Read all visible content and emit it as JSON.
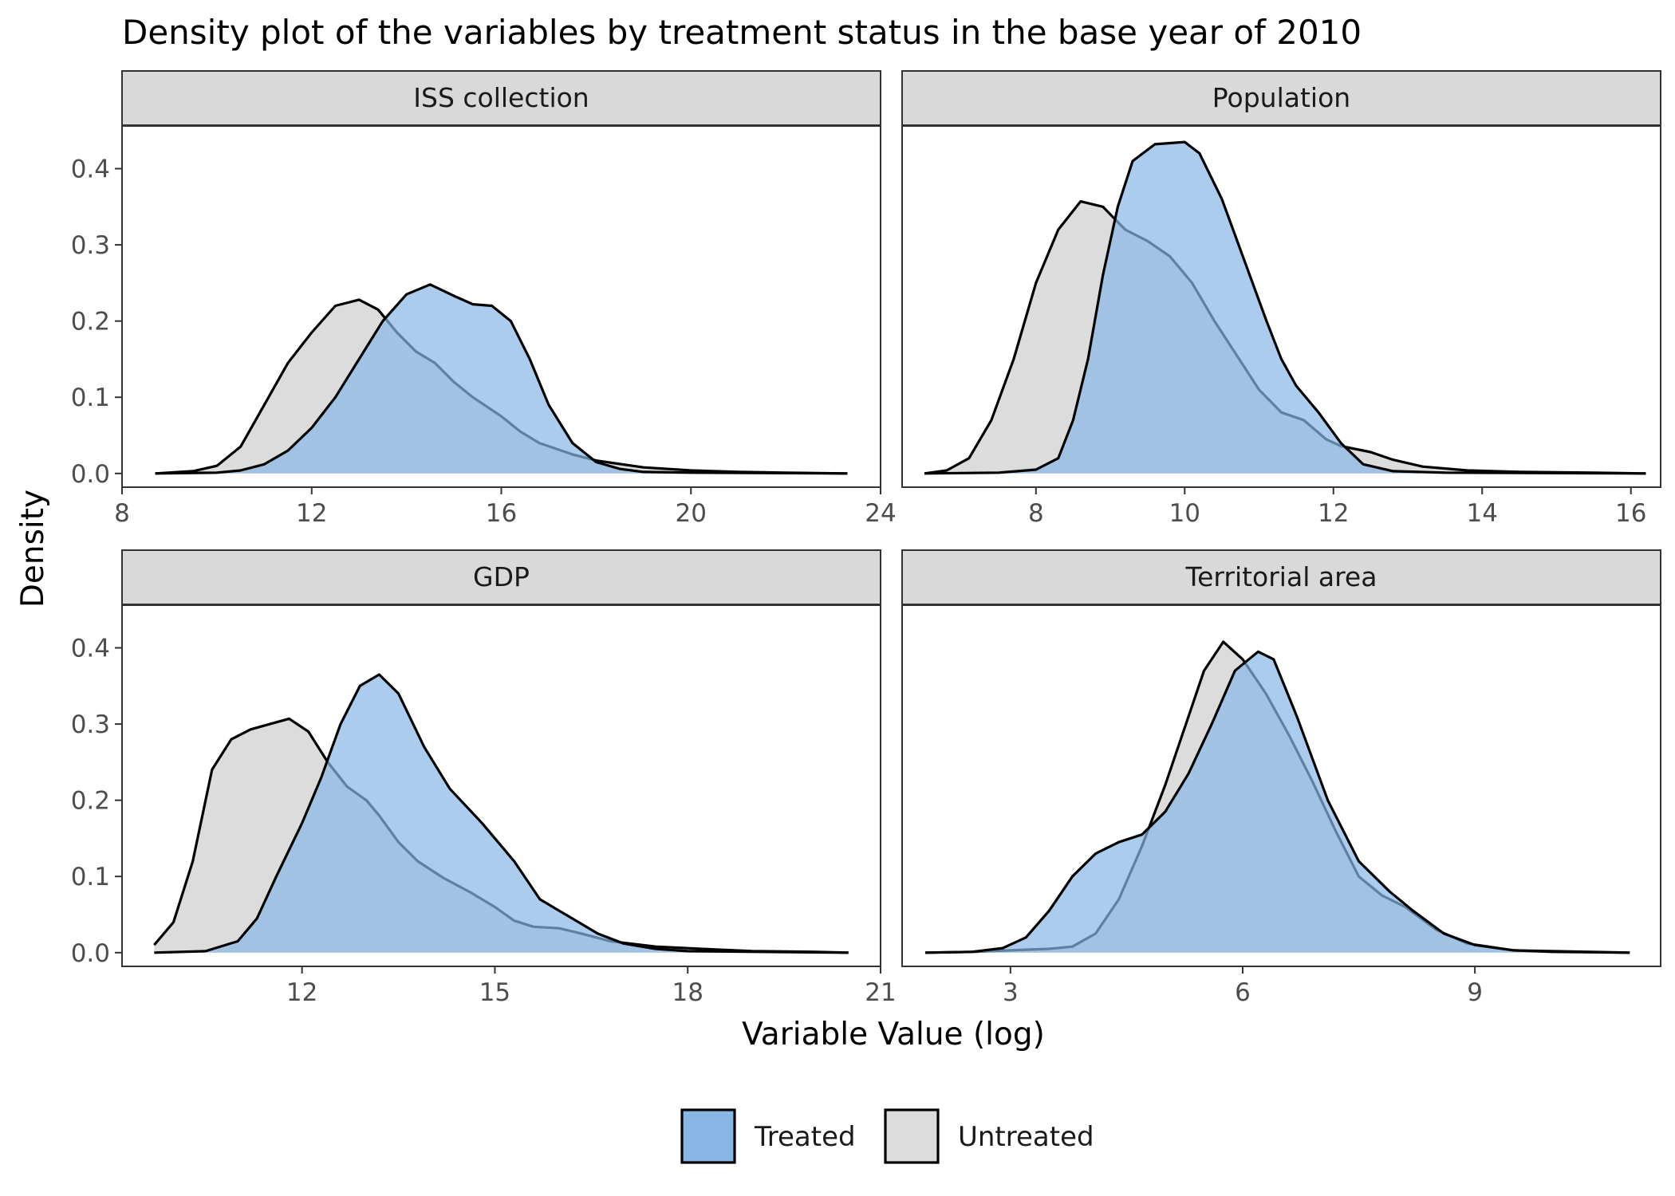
{
  "chart_data": {
    "type": "area",
    "subtype": "density-facets",
    "title": "Density plot of the variables by treatment status in the base year of 2010",
    "xlabel": "Variable Value (log)",
    "ylabel": "Density",
    "grid": false,
    "legend_position": "bottom",
    "series_style": {
      "Treated": {
        "fill": "#87b6e5",
        "stroke": "#000000"
      },
      "Untreated": {
        "fill": "#dcdcdc",
        "stroke": "#000000"
      }
    },
    "legend": [
      {
        "name": "Treated",
        "color": "#87b6e5"
      },
      {
        "name": "Untreated",
        "color": "#dcdcdc"
      }
    ],
    "y_ticks": [
      "0.0",
      "0.1",
      "0.2",
      "0.3",
      "0.4"
    ],
    "y_tick_values": [
      0,
      0.1,
      0.2,
      0.3,
      0.4
    ],
    "ylim": [
      -0.018,
      0.456
    ],
    "facets": [
      {
        "label": "ISS collection",
        "xlim": [
          8,
          24
        ],
        "x_ticks": [
          "8",
          "12",
          "16",
          "20",
          "24"
        ],
        "x_tick_values": [
          8,
          12,
          16,
          20,
          24
        ],
        "series": [
          {
            "name": "Untreated",
            "points": [
              [
                8.7,
                0
              ],
              [
                9.5,
                0.003
              ],
              [
                10,
                0.01
              ],
              [
                10.5,
                0.035
              ],
              [
                11,
                0.09
              ],
              [
                11.5,
                0.145
              ],
              [
                12,
                0.185
              ],
              [
                12.5,
                0.22
              ],
              [
                13,
                0.228
              ],
              [
                13.4,
                0.215
              ],
              [
                13.8,
                0.185
              ],
              [
                14.2,
                0.16
              ],
              [
                14.6,
                0.145
              ],
              [
                15,
                0.12
              ],
              [
                15.4,
                0.1
              ],
              [
                16,
                0.075
              ],
              [
                16.4,
                0.055
              ],
              [
                16.8,
                0.04
              ],
              [
                17.5,
                0.025
              ],
              [
                18,
                0.017
              ],
              [
                19,
                0.008
              ],
              [
                20,
                0.004
              ],
              [
                21,
                0.002
              ],
              [
                22,
                0.001
              ],
              [
                23.3,
                0
              ]
            ]
          },
          {
            "name": "Treated",
            "points": [
              [
                8.7,
                0
              ],
              [
                10,
                0.001
              ],
              [
                10.5,
                0.004
              ],
              [
                11,
                0.012
              ],
              [
                11.5,
                0.03
              ],
              [
                12,
                0.06
              ],
              [
                12.5,
                0.1
              ],
              [
                13,
                0.15
              ],
              [
                13.5,
                0.2
              ],
              [
                14,
                0.235
              ],
              [
                14.5,
                0.248
              ],
              [
                15,
                0.233
              ],
              [
                15.4,
                0.222
              ],
              [
                15.8,
                0.22
              ],
              [
                16.2,
                0.2
              ],
              [
                16.6,
                0.15
              ],
              [
                17,
                0.09
              ],
              [
                17.5,
                0.04
              ],
              [
                18,
                0.015
              ],
              [
                18.5,
                0.006
              ],
              [
                19,
                0.002
              ],
              [
                20,
                0.001
              ],
              [
                23.3,
                0
              ]
            ]
          }
        ]
      },
      {
        "label": "Population",
        "xlim": [
          6.2,
          16.4
        ],
        "x_ticks": [
          "8",
          "10",
          "12",
          "14",
          "16"
        ],
        "x_tick_values": [
          8,
          10,
          12,
          14,
          16
        ],
        "series": [
          {
            "name": "Untreated",
            "points": [
              [
                6.5,
                0
              ],
              [
                6.8,
                0.004
              ],
              [
                7.1,
                0.02
              ],
              [
                7.4,
                0.07
              ],
              [
                7.7,
                0.15
              ],
              [
                8,
                0.25
              ],
              [
                8.3,
                0.32
              ],
              [
                8.6,
                0.357
              ],
              [
                8.9,
                0.35
              ],
              [
                9.2,
                0.32
              ],
              [
                9.5,
                0.305
              ],
              [
                9.8,
                0.285
              ],
              [
                10.1,
                0.25
              ],
              [
                10.4,
                0.2
              ],
              [
                10.7,
                0.155
              ],
              [
                11,
                0.11
              ],
              [
                11.3,
                0.08
              ],
              [
                11.6,
                0.07
              ],
              [
                11.9,
                0.045
              ],
              [
                12.1,
                0.036
              ],
              [
                12.5,
                0.028
              ],
              [
                12.8,
                0.018
              ],
              [
                13.2,
                0.009
              ],
              [
                13.8,
                0.004
              ],
              [
                14.5,
                0.002
              ],
              [
                15.5,
                0.001
              ],
              [
                16.2,
                0
              ]
            ]
          },
          {
            "name": "Treated",
            "points": [
              [
                6.5,
                0
              ],
              [
                7.5,
                0.001
              ],
              [
                8,
                0.005
              ],
              [
                8.3,
                0.02
              ],
              [
                8.5,
                0.07
              ],
              [
                8.7,
                0.15
              ],
              [
                8.9,
                0.26
              ],
              [
                9.1,
                0.35
              ],
              [
                9.3,
                0.41
              ],
              [
                9.6,
                0.432
              ],
              [
                10,
                0.435
              ],
              [
                10.2,
                0.42
              ],
              [
                10.5,
                0.36
              ],
              [
                10.8,
                0.28
              ],
              [
                11.1,
                0.2
              ],
              [
                11.3,
                0.15
              ],
              [
                11.5,
                0.115
              ],
              [
                11.8,
                0.08
              ],
              [
                12.1,
                0.04
              ],
              [
                12.4,
                0.012
              ],
              [
                12.8,
                0.003
              ],
              [
                13.5,
                0.001
              ],
              [
                16.2,
                0
              ]
            ]
          }
        ]
      },
      {
        "label": "GDP",
        "xlim": [
          9.2,
          21
        ],
        "x_ticks": [
          "12",
          "15",
          "18",
          "21"
        ],
        "x_tick_values": [
          12,
          15,
          18,
          21
        ],
        "series": [
          {
            "name": "Untreated",
            "points": [
              [
                9.7,
                0.01
              ],
              [
                10,
                0.04
              ],
              [
                10.3,
                0.12
              ],
              [
                10.6,
                0.24
              ],
              [
                10.9,
                0.28
              ],
              [
                11.2,
                0.293
              ],
              [
                11.5,
                0.3
              ],
              [
                11.8,
                0.307
              ],
              [
                12.1,
                0.29
              ],
              [
                12.4,
                0.25
              ],
              [
                12.7,
                0.218
              ],
              [
                13,
                0.2
              ],
              [
                13.2,
                0.18
              ],
              [
                13.5,
                0.145
              ],
              [
                13.8,
                0.12
              ],
              [
                14.2,
                0.098
              ],
              [
                14.6,
                0.08
              ],
              [
                15,
                0.06
              ],
              [
                15.3,
                0.042
              ],
              [
                15.6,
                0.034
              ],
              [
                16,
                0.032
              ],
              [
                16.3,
                0.026
              ],
              [
                16.8,
                0.015
              ],
              [
                17.5,
                0.008
              ],
              [
                18.2,
                0.005
              ],
              [
                19,
                0.002
              ],
              [
                20,
                0.001
              ],
              [
                20.5,
                0
              ]
            ]
          },
          {
            "name": "Treated",
            "points": [
              [
                9.7,
                0
              ],
              [
                10.5,
                0.002
              ],
              [
                11,
                0.015
              ],
              [
                11.3,
                0.045
              ],
              [
                11.6,
                0.1
              ],
              [
                12,
                0.17
              ],
              [
                12.3,
                0.23
              ],
              [
                12.6,
                0.3
              ],
              [
                12.9,
                0.35
              ],
              [
                13.2,
                0.365
              ],
              [
                13.5,
                0.34
              ],
              [
                13.9,
                0.27
              ],
              [
                14.3,
                0.215
              ],
              [
                14.8,
                0.17
              ],
              [
                15.3,
                0.12
              ],
              [
                15.7,
                0.07
              ],
              [
                16.2,
                0.045
              ],
              [
                16.6,
                0.025
              ],
              [
                17,
                0.012
              ],
              [
                17.5,
                0.005
              ],
              [
                18,
                0.002
              ],
              [
                20.5,
                0
              ]
            ]
          }
        ]
      },
      {
        "label": "Territorial area",
        "xlim": [
          1.6,
          11.4
        ],
        "x_ticks": [
          "3",
          "6",
          "9"
        ],
        "x_tick_values": [
          3,
          6,
          9
        ],
        "series": [
          {
            "name": "Untreated",
            "points": [
              [
                1.9,
                0
              ],
              [
                2.5,
                0.001
              ],
              [
                3,
                0.003
              ],
              [
                3.5,
                0.005
              ],
              [
                3.8,
                0.008
              ],
              [
                4.1,
                0.025
              ],
              [
                4.4,
                0.07
              ],
              [
                4.7,
                0.14
              ],
              [
                5,
                0.22
              ],
              [
                5.3,
                0.31
              ],
              [
                5.5,
                0.37
              ],
              [
                5.75,
                0.408
              ],
              [
                6,
                0.385
              ],
              [
                6.3,
                0.34
              ],
              [
                6.6,
                0.285
              ],
              [
                6.9,
                0.225
              ],
              [
                7.2,
                0.16
              ],
              [
                7.5,
                0.1
              ],
              [
                7.8,
                0.075
              ],
              [
                8.1,
                0.06
              ],
              [
                8.5,
                0.03
              ],
              [
                8.9,
                0.012
              ],
              [
                9.5,
                0.003
              ],
              [
                10.5,
                0.001
              ],
              [
                11,
                0
              ]
            ]
          },
          {
            "name": "Treated",
            "points": [
              [
                1.9,
                0
              ],
              [
                2.5,
                0.001
              ],
              [
                2.9,
                0.006
              ],
              [
                3.2,
                0.02
              ],
              [
                3.5,
                0.055
              ],
              [
                3.8,
                0.1
              ],
              [
                4.1,
                0.13
              ],
              [
                4.4,
                0.145
              ],
              [
                4.7,
                0.155
              ],
              [
                5,
                0.185
              ],
              [
                5.3,
                0.235
              ],
              [
                5.6,
                0.3
              ],
              [
                5.9,
                0.37
              ],
              [
                6.2,
                0.395
              ],
              [
                6.4,
                0.385
              ],
              [
                6.7,
                0.31
              ],
              [
                7.1,
                0.2
              ],
              [
                7.5,
                0.12
              ],
              [
                7.9,
                0.08
              ],
              [
                8.2,
                0.055
              ],
              [
                8.6,
                0.025
              ],
              [
                9,
                0.01
              ],
              [
                9.5,
                0.003
              ],
              [
                10,
                0.001
              ],
              [
                11,
                0
              ]
            ]
          }
        ]
      }
    ]
  }
}
